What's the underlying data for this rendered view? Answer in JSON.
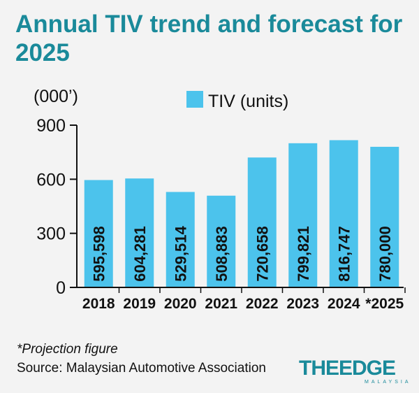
{
  "chart_data": {
    "type": "bar",
    "title": "Annual TIV trend and forecast for 2025",
    "ylabel": "(000’)",
    "legend": {
      "label": "TIV (units)",
      "placement": "top"
    },
    "categories": [
      "2018",
      "2019",
      "2020",
      "2021",
      "2022",
      "2023",
      "2024",
      "*2025"
    ],
    "values": [
      595598,
      604281,
      529514,
      508883,
      720658,
      799821,
      816747,
      780000
    ],
    "value_labels": [
      "595,598",
      "604,281",
      "529,514",
      "508,883",
      "720,658",
      "799,821",
      "816,747",
      "780,000"
    ],
    "yticks": [
      {
        "value": 0,
        "label": "0"
      },
      {
        "value": 300,
        "label": "300"
      },
      {
        "value": 600,
        "label": "600"
      },
      {
        "value": 900,
        "label": "900"
      }
    ],
    "ylim": [
      0,
      900
    ],
    "y_unit_divisor": 1000,
    "grid": false,
    "bar_color": "#4cc3ec"
  },
  "footnote": "*Projection figure",
  "source": "Source: Malaysian Automotive Association",
  "logo": {
    "text": "THEEDGE",
    "subtext": "MALAYSIA",
    "color": "#1a8a9a"
  },
  "colors": {
    "title": "#1a8a9a",
    "bar": "#4cc3ec",
    "background": "#f3f3f3"
  }
}
